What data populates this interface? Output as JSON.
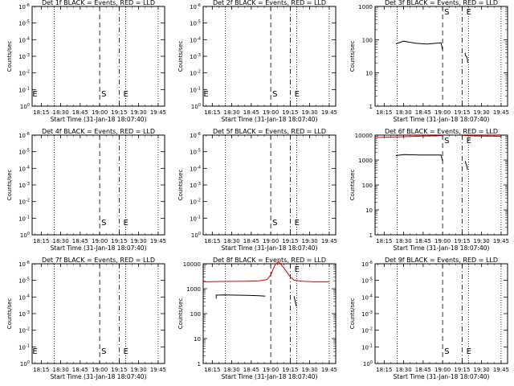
{
  "chart_data": [
    {
      "type": "line",
      "title": "Det 1f BLACK = Events, RED = LLD",
      "xlabel": "Start Time (31-Jan-18 18:07:40)",
      "ylabel": "Counts/sec",
      "x_ticks": [
        "18:15",
        "18:30",
        "18:45",
        "19:00",
        "19:15",
        "19:30",
        "19:45"
      ],
      "y_scale": "log",
      "y_ticks": [
        "10^0",
        "10^-1",
        "10^-2",
        "10^-3",
        "10^-4",
        "10^-5",
        "10^-6"
      ],
      "markers": [
        {
          "label": "E",
          "x": "18:07"
        },
        {
          "label": "S",
          "x": "19:00"
        },
        {
          "label": "E",
          "x": "19:17"
        }
      ],
      "series": []
    },
    {
      "type": "line",
      "title": "Det 2f BLACK = Events, RED = LLD",
      "xlabel": "Start Time (31-Jan-18 18:07:40)",
      "ylabel": "Counts/sec",
      "x_ticks": [
        "18:15",
        "18:30",
        "18:45",
        "19:00",
        "19:15",
        "19:30",
        "19:45"
      ],
      "y_scale": "log",
      "y_ticks": [
        "10^0",
        "10^-1",
        "10^-2",
        "10^-3",
        "10^-4",
        "10^-5",
        "10^-6"
      ],
      "markers": [
        {
          "label": "E",
          "x": "18:07"
        },
        {
          "label": "S",
          "x": "19:00"
        },
        {
          "label": "E",
          "x": "19:17"
        }
      ],
      "series": []
    },
    {
      "type": "line",
      "title": "Det 3f BLACK = Events, RED = LLD",
      "xlabel": "Start Time (31-Jan-18 18:07:40)",
      "ylabel": "Counts/sec",
      "x_ticks": [
        "18:15",
        "18:30",
        "18:45",
        "19:00",
        "19:15",
        "19:30",
        "19:45"
      ],
      "y_scale": "log",
      "y_ticks": [
        "1000",
        "100",
        "10",
        "1"
      ],
      "markers": [
        {
          "label": "S",
          "x": "19:00"
        },
        {
          "label": "E",
          "x": "19:17"
        }
      ],
      "series": [
        {
          "color": "black",
          "points": [
            [
              18.4,
              75
            ],
            [
              18.5,
              90
            ],
            [
              18.65,
              78
            ],
            [
              18.8,
              74
            ],
            [
              18.92,
              78
            ],
            [
              18.98,
              80
            ],
            [
              18.999,
              50
            ]
          ]
        },
        {
          "color": "black",
          "points": [
            [
              19.29,
              40
            ],
            [
              19.29,
              35
            ],
            [
              19.3,
              32
            ],
            [
              19.31,
              30
            ],
            [
              19.32,
              25
            ],
            [
              19.32,
              20
            ]
          ]
        }
      ]
    },
    {
      "type": "line",
      "title": "Det 4f BLACK = Events, RED = LLD",
      "xlabel": "Start Time (31-Jan-18 18:07:40)",
      "ylabel": "Counts/sec",
      "x_ticks": [
        "18:15",
        "18:30",
        "18:45",
        "19:00",
        "19:15",
        "19:30",
        "19:45"
      ],
      "y_scale": "log",
      "y_ticks": [
        "10^0",
        "10^-1",
        "10^-2",
        "10^-3",
        "10^-4",
        "10^-5",
        "10^-6"
      ],
      "markers": [
        {
          "label": "S",
          "x": "19:00"
        },
        {
          "label": "E",
          "x": "19:17"
        }
      ],
      "series": []
    },
    {
      "type": "line",
      "title": "Det 5f BLACK = Events, RED = LLD",
      "xlabel": "Start Time (31-Jan-18 18:07:40)",
      "ylabel": "Counts/sec",
      "x_ticks": [
        "18:15",
        "18:30",
        "18:45",
        "19:00",
        "19:15",
        "19:30",
        "19:45"
      ],
      "y_scale": "log",
      "y_ticks": [
        "10^0",
        "10^-1",
        "10^-2",
        "10^-3",
        "10^-4",
        "10^-5",
        "10^-6"
      ],
      "markers": [
        {
          "label": "S",
          "x": "19:00"
        },
        {
          "label": "E",
          "x": "19:17"
        }
      ],
      "series": []
    },
    {
      "type": "line",
      "title": "Det 6f BLACK = Events, RED = LLD",
      "xlabel": "Start Time (31-Jan-18 18:07:40)",
      "ylabel": "Counts/sec",
      "x_ticks": [
        "18:15",
        "18:30",
        "18:45",
        "19:00",
        "19:15",
        "19:30",
        "19:45"
      ],
      "y_scale": "log",
      "y_ticks": [
        "10000",
        "1000",
        "100",
        "10",
        "1"
      ],
      "markers": [
        {
          "label": "S",
          "x": "19:00"
        },
        {
          "label": "E",
          "x": "19:17"
        }
      ],
      "series": [
        {
          "color": "red",
          "points": [
            [
              18.13,
              8000
            ],
            [
              18.3,
              8300
            ],
            [
              18.5,
              8600
            ],
            [
              18.7,
              9000
            ],
            [
              18.9,
              9300
            ],
            [
              18.98,
              9500
            ],
            [
              19.0,
              9600
            ]
          ]
        },
        {
          "color": "red",
          "points": [
            [
              19.25,
              9700
            ],
            [
              19.35,
              9300
            ],
            [
              19.5,
              9100
            ],
            [
              19.65,
              9000
            ],
            [
              19.75,
              8900
            ]
          ]
        },
        {
          "color": "black",
          "points": [
            [
              18.4,
              1500
            ],
            [
              18.5,
              1650
            ],
            [
              18.7,
              1600
            ],
            [
              18.9,
              1600
            ],
            [
              18.98,
              1600
            ],
            [
              18.999,
              900
            ]
          ]
        },
        {
          "color": "black",
          "points": [
            [
              19.29,
              900
            ],
            [
              19.3,
              700
            ],
            [
              19.31,
              600
            ],
            [
              19.32,
              400
            ]
          ]
        }
      ]
    },
    {
      "type": "line",
      "title": "Det 7f BLACK = Events, RED = LLD",
      "xlabel": "Start Time (31-Jan-18 18:07:40)",
      "ylabel": "Counts/sec",
      "x_ticks": [
        "18:15",
        "18:30",
        "18:45",
        "19:00",
        "19:15",
        "19:30",
        "19:45"
      ],
      "y_scale": "log",
      "y_ticks": [
        "10^0",
        "10^-1",
        "10^-2",
        "10^-3",
        "10^-4",
        "10^-5",
        "10^-6"
      ],
      "markers": [
        {
          "label": "E",
          "x": "18:07"
        },
        {
          "label": "S",
          "x": "19:00"
        },
        {
          "label": "E",
          "x": "19:17"
        }
      ],
      "series": []
    },
    {
      "type": "line",
      "title": "Det 8f BLACK = Events, RED = LLD",
      "xlabel": "Start Time (31-Jan-18 18:07:40)",
      "ylabel": "Counts/sec",
      "x_ticks": [
        "18:15",
        "18:30",
        "18:45",
        "19:00",
        "19:15",
        "19:30",
        "19:45"
      ],
      "y_scale": "log",
      "y_ticks": [
        "10000",
        "1000",
        "100",
        "10",
        "1"
      ],
      "markers": [
        {
          "label": "E",
          "x": "19:17"
        }
      ],
      "series": [
        {
          "color": "red",
          "points": [
            [
              18.13,
              1900
            ],
            [
              18.4,
              1950
            ],
            [
              18.7,
              2000
            ],
            [
              18.85,
              2050
            ],
            [
              18.95,
              2300
            ],
            [
              19.0,
              3500
            ],
            [
              19.03,
              6000
            ],
            [
              19.06,
              9500
            ],
            [
              19.1,
              12000
            ],
            [
              19.15,
              8000
            ],
            [
              19.2,
              5000
            ],
            [
              19.25,
              3000
            ],
            [
              19.3,
              2200
            ],
            [
              19.4,
              2000
            ],
            [
              19.55,
              1900
            ],
            [
              19.75,
              1900
            ]
          ]
        },
        {
          "color": "black",
          "points": [
            [
              18.3,
              400
            ],
            [
              18.3,
              550
            ],
            [
              18.4,
              560
            ],
            [
              18.55,
              550
            ],
            [
              18.7,
              540
            ],
            [
              18.85,
              520
            ],
            [
              18.93,
              500
            ]
          ]
        },
        {
          "color": "black",
          "points": [
            [
              19.3,
              500
            ],
            [
              19.31,
              350
            ],
            [
              19.32,
              250
            ],
            [
              19.33,
              200
            ]
          ]
        }
      ]
    },
    {
      "type": "line",
      "title": "Det 9f BLACK = Events, RED = LLD",
      "xlabel": "Start Time (31-Jan-18 18:07:40)",
      "ylabel": "Counts/sec",
      "x_ticks": [
        "18:15",
        "18:30",
        "18:45",
        "19:00",
        "19:15",
        "19:30",
        "19:45"
      ],
      "y_scale": "log",
      "y_ticks": [
        "10^0",
        "10^-1",
        "10^-2",
        "10^-3",
        "10^-4",
        "10^-5",
        "10^-6"
      ],
      "markers": [
        {
          "label": "S",
          "x": "19:00"
        },
        {
          "label": "E",
          "x": "19:17"
        }
      ],
      "series": []
    }
  ]
}
